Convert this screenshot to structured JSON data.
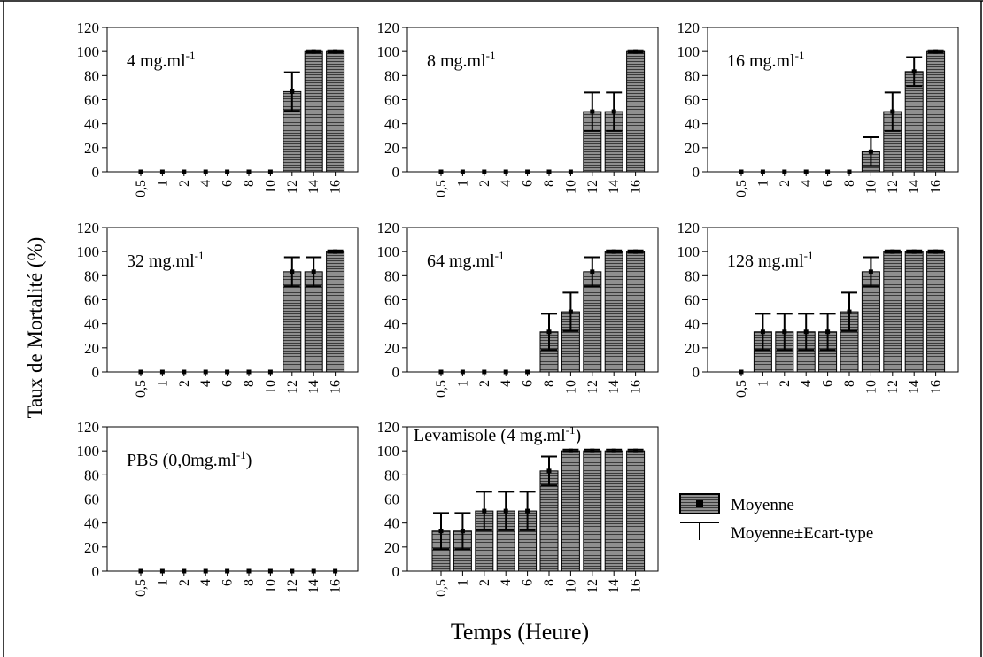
{
  "figure": {
    "ylabel": "Taux de Mortalité (%)",
    "xlabel": "Temps (Heure)"
  },
  "legend": {
    "items": [
      {
        "label": "Moyenne",
        "symbol": "bar-with-point"
      },
      {
        "label": "Moyenne±Ecart-type",
        "symbol": "error-bar"
      }
    ]
  },
  "colors": {
    "bar_fill": "#8f8f8f",
    "bar_stripe": "#3a3a3a",
    "axis": "#000000"
  },
  "chart_data": [
    {
      "type": "bar",
      "label": {
        "main": "4 mg.ml",
        "sup": "-1"
      },
      "categories": [
        "0,5",
        "1",
        "2",
        "4",
        "6",
        "8",
        "10",
        "12",
        "14",
        "16"
      ],
      "values": [
        0,
        0,
        0,
        0,
        0,
        0,
        0,
        66.7,
        100,
        100
      ],
      "errors": [
        0,
        0,
        0,
        0,
        0,
        0,
        0,
        16,
        1,
        1
      ],
      "yticks": [
        "0",
        "20",
        "40",
        "60",
        "80",
        "100",
        "120"
      ],
      "ylim": [
        0,
        120
      ]
    },
    {
      "type": "bar",
      "label": {
        "main": "8 mg.ml",
        "sup": "-1"
      },
      "categories": [
        "0,5",
        "1",
        "2",
        "4",
        "6",
        "8",
        "10",
        "12",
        "14",
        "16"
      ],
      "values": [
        0,
        0,
        0,
        0,
        0,
        0,
        0,
        50,
        50,
        100
      ],
      "errors": [
        0,
        0,
        0,
        0,
        0,
        0,
        0,
        16,
        16,
        1
      ],
      "yticks": [
        "0",
        "20",
        "40",
        "60",
        "80",
        "100",
        "120"
      ],
      "ylim": [
        0,
        120
      ]
    },
    {
      "type": "bar",
      "label": {
        "main": "16 mg.ml",
        "sup": "-1"
      },
      "categories": [
        "0,5",
        "1",
        "2",
        "4",
        "6",
        "8",
        "10",
        "12",
        "14",
        "16"
      ],
      "values": [
        0,
        0,
        0,
        0,
        0,
        0,
        16.7,
        50,
        83.3,
        100
      ],
      "errors": [
        0,
        0,
        0,
        0,
        0,
        0,
        12,
        16,
        12,
        1
      ],
      "yticks": [
        "0",
        "20",
        "40",
        "60",
        "80",
        "100",
        "120"
      ],
      "ylim": [
        0,
        120
      ]
    },
    {
      "type": "bar",
      "label": {
        "main": "32 mg.ml",
        "sup": "-1"
      },
      "categories": [
        "0,5",
        "1",
        "2",
        "4",
        "6",
        "8",
        "10",
        "12",
        "14",
        "16"
      ],
      "values": [
        0,
        0,
        0,
        0,
        0,
        0,
        0,
        83.3,
        83.3,
        100
      ],
      "errors": [
        0,
        0,
        0,
        0,
        0,
        0,
        0,
        12,
        12,
        1
      ],
      "yticks": [
        "0",
        "20",
        "40",
        "60",
        "80",
        "100",
        "120"
      ],
      "ylim": [
        0,
        120
      ]
    },
    {
      "type": "bar",
      "label": {
        "main": "64 mg.ml",
        "sup": "-1"
      },
      "categories": [
        "0,5",
        "1",
        "2",
        "4",
        "6",
        "8",
        "10",
        "12",
        "14",
        "16"
      ],
      "values": [
        0,
        0,
        0,
        0,
        0,
        33.3,
        50,
        83.3,
        100,
        100
      ],
      "errors": [
        0,
        0,
        0,
        0,
        0,
        15,
        16,
        12,
        1,
        1
      ],
      "yticks": [
        "0",
        "20",
        "40",
        "60",
        "80",
        "100",
        "120"
      ],
      "ylim": [
        0,
        120
      ]
    },
    {
      "type": "bar",
      "label": {
        "main": "128 mg.ml",
        "sup": "-1"
      },
      "categories": [
        "0,5",
        "1",
        "2",
        "4",
        "6",
        "8",
        "10",
        "12",
        "14",
        "16"
      ],
      "values": [
        0,
        33.3,
        33.3,
        33.3,
        33.3,
        50,
        83.3,
        100,
        100,
        100
      ],
      "errors": [
        0,
        15,
        15,
        15,
        15,
        16,
        12,
        1,
        1,
        1
      ],
      "yticks": [
        "0",
        "20",
        "40",
        "60",
        "80",
        "100",
        "120"
      ],
      "ylim": [
        0,
        120
      ]
    },
    {
      "type": "bar",
      "label": {
        "main": "PBS (0,0mg.ml",
        "sup": "-1",
        "tail": ")"
      },
      "categories": [
        "0,5",
        "1",
        "2",
        "4",
        "6",
        "8",
        "10",
        "12",
        "14",
        "16"
      ],
      "values": [
        0,
        0,
        0,
        0,
        0,
        0,
        0,
        0,
        0,
        0
      ],
      "errors": [
        0,
        0,
        0,
        0,
        0,
        0,
        0,
        0,
        0,
        0
      ],
      "yticks": [
        "0",
        "20",
        "40",
        "60",
        "80",
        "100",
        "120"
      ],
      "ylim": [
        0,
        120
      ]
    },
    {
      "type": "bar",
      "label": {
        "main": "Levamisole (4 mg.ml",
        "sup": "-1",
        "tail": ")"
      },
      "categories": [
        "0,5",
        "1",
        "2",
        "4",
        "6",
        "8",
        "10",
        "12",
        "14",
        "16"
      ],
      "values": [
        33.3,
        33.3,
        50,
        50,
        50,
        83.3,
        100,
        100,
        100,
        100
      ],
      "errors": [
        15,
        15,
        16,
        16,
        16,
        12,
        1,
        1,
        1,
        1
      ],
      "yticks": [
        "0",
        "20",
        "40",
        "60",
        "80",
        "100",
        "120"
      ],
      "ylim": [
        0,
        120
      ]
    }
  ]
}
